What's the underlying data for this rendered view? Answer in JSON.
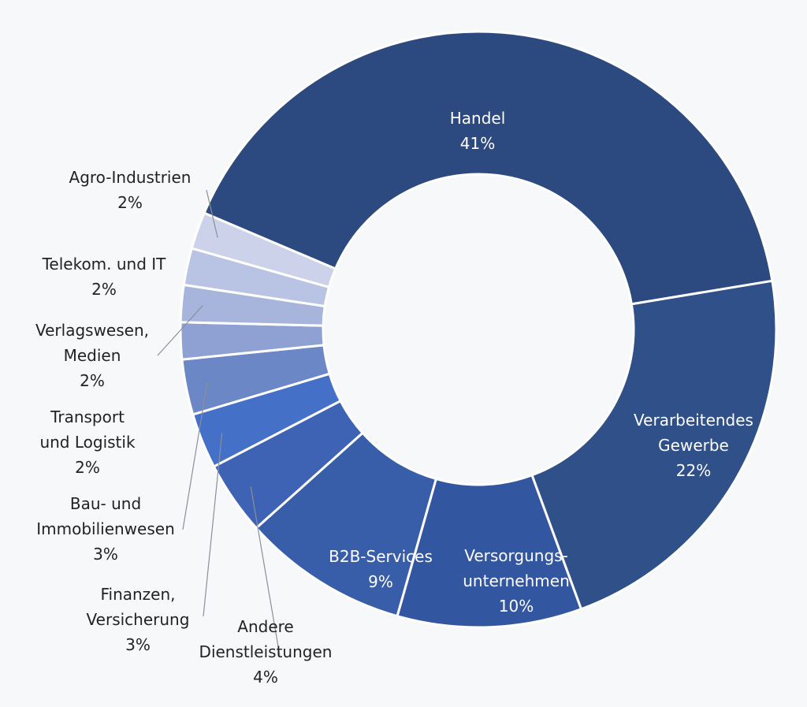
{
  "chart_data": {
    "type": "pie",
    "donut": true,
    "title": "",
    "slices": [
      {
        "name": "Handel",
        "value": 41,
        "label": "41%",
        "color": "#2c4a7f"
      },
      {
        "name": "Verarbeitendes Gewerbe",
        "value": 22,
        "label": "22%",
        "color": "#2f5089"
      },
      {
        "name": "Versorgungs­unternehmen",
        "value": 10,
        "label": "10%",
        "color": "#3356a0"
      },
      {
        "name": "B2B-Services",
        "value": 9,
        "label": "9%",
        "color": "#385ea9"
      },
      {
        "name": "Andere Dienstleistungen",
        "value": 4,
        "label": "4%",
        "color": "#3e63b5"
      },
      {
        "name": "Finanzen, Versicherung",
        "value": 3,
        "label": "3%",
        "color": "#4570c8"
      },
      {
        "name": "Bau- und Immobilienwesen",
        "value": 3,
        "label": "3%",
        "color": "#6b87c6"
      },
      {
        "name": "Transport und Logistik",
        "value": 2,
        "label": "2%",
        "color": "#8fa1d2"
      },
      {
        "name": "Verlagswesen, Medien",
        "value": 2,
        "label": "2%",
        "color": "#a7b5dc"
      },
      {
        "name": "Telekom. und IT",
        "value": 2,
        "label": "2%",
        "color": "#b9c3e3"
      },
      {
        "name": "Agro-Industrien",
        "value": 2,
        "label": "2%",
        "color": "#cbd2ea"
      }
    ],
    "label_lines": [
      [
        "Versorgungs-",
        "unternehmen"
      ],
      [
        "Andere",
        "Dienstleistungen"
      ],
      [
        "Finanzen,",
        "Versicherung"
      ],
      [
        "Bau- und",
        "Immobilienwesen"
      ],
      [
        "Transport",
        "und Logistik"
      ],
      [
        "Verlagswesen,",
        "Medien"
      ],
      [
        "Telekom. und IT"
      ],
      [
        "Agro-Industrien"
      ]
    ]
  }
}
